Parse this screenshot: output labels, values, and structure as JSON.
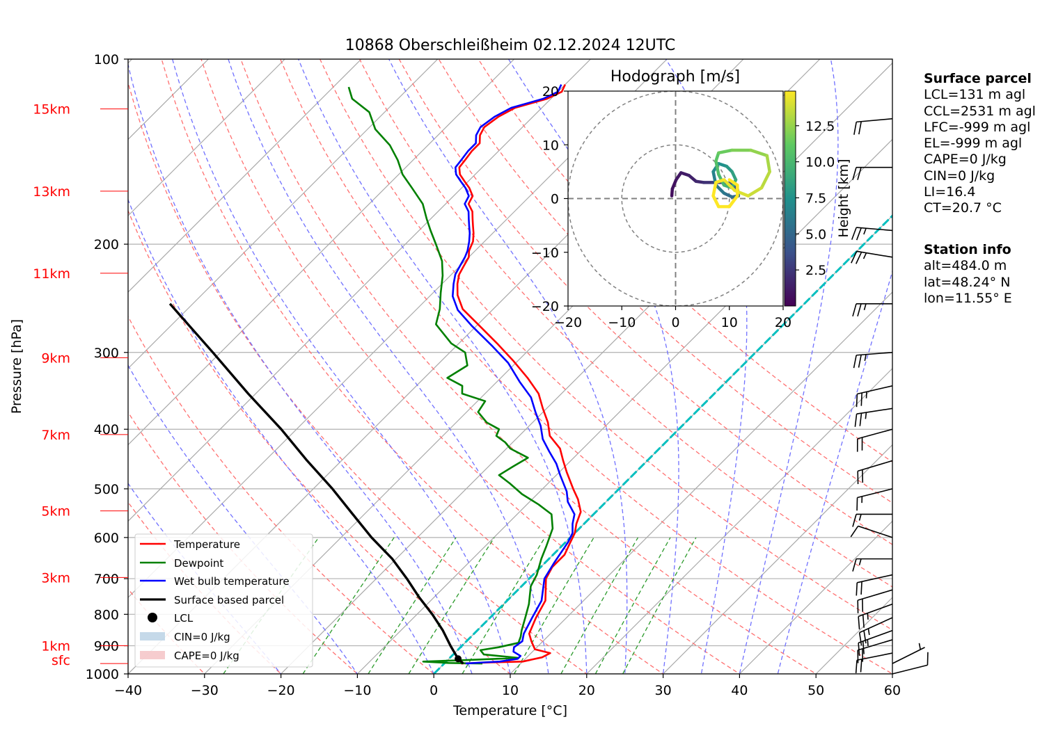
{
  "title": "10868 Oberschleißheim 02.12.2024 12UTC",
  "axes": {
    "xlabel": "Temperature [°C]",
    "ylabel": "Pressure [hPa]",
    "x_ticks": [
      "−40",
      "−30",
      "−20",
      "−10",
      "0",
      "10",
      "20",
      "30",
      "40",
      "50",
      "60"
    ],
    "y_ticks": [
      "100",
      "200",
      "300",
      "400",
      "500",
      "600",
      "700",
      "800",
      "900",
      "1000"
    ],
    "height_labels": [
      "15km",
      "13km",
      "11km",
      "9km",
      "7km",
      "5km",
      "3km",
      "1km",
      "sfc"
    ]
  },
  "legend": {
    "placement": "lower-left",
    "items": [
      "Temperature",
      "Dewpoint",
      "Wet bulb temperature",
      "Surface based parcel",
      "LCL",
      "CIN=0 J/kg",
      "CAPE=0 J/kg"
    ]
  },
  "hodograph": {
    "title": "Hodograph [m/s]",
    "ticks": [
      "−20",
      "−10",
      "0",
      "10",
      "20"
    ],
    "colorbar_label": "Height [km]",
    "colorbar_ticks": [
      "2.5",
      "5.0",
      "7.5",
      "10.0",
      "12.5"
    ]
  },
  "surface_parcel": {
    "header": "Surface parcel",
    "lines": [
      "LCL=131 m agl",
      "CCL=2531 m agl",
      "LFC=-999 m agl",
      "EL=-999 m agl",
      "CAPE=0 J/kg",
      "CIN=0 J/kg",
      "LI=16.4",
      "CT=20.7 °C"
    ]
  },
  "station_info": {
    "header": "Station info",
    "lines": [
      "alt=484.0 m",
      "lat=48.24° N",
      "lon=11.55° E"
    ]
  },
  "colors": {
    "temperature": "#ff0000",
    "dewpoint": "#008000",
    "wetbulb": "#0000ff",
    "parcel": "#000000",
    "freezing_level": "#00bfbf",
    "dry_adiabat": "#ff7070",
    "moist_adiabat": "#7070ff",
    "mixing_ratio": "#2a9a2a"
  },
  "chart_data": {
    "type": "line",
    "skew": "log-p skew-T",
    "xlim": [
      -40,
      60
    ],
    "ylim": [
      1000,
      100
    ],
    "series": [
      {
        "name": "Temperature",
        "points": [
          [
            2.2,
            962
          ],
          [
            6,
            958
          ],
          [
            10,
            955
          ],
          [
            12,
            940
          ],
          [
            12.5,
            925
          ],
          [
            10,
            912
          ],
          [
            8.5,
            885
          ],
          [
            7.2,
            860
          ],
          [
            6,
            810
          ],
          [
            5,
            760
          ],
          [
            2.2,
            700
          ],
          [
            1.5,
            670
          ],
          [
            1.5,
            640
          ],
          [
            0.6,
            610
          ],
          [
            0,
            590
          ],
          [
            -1,
            570
          ],
          [
            -2,
            545
          ],
          [
            -4,
            520
          ],
          [
            -6,
            500
          ],
          [
            -9,
            470
          ],
          [
            -11,
            450
          ],
          [
            -13,
            430
          ],
          [
            -16,
            410
          ],
          [
            -18,
            390
          ],
          [
            -20.5,
            370
          ],
          [
            -23,
            350
          ],
          [
            -26.5,
            330
          ],
          [
            -30.5,
            310
          ],
          [
            -35,
            290
          ],
          [
            -40,
            270
          ],
          [
            -44,
            255
          ],
          [
            -46.5,
            242
          ],
          [
            -48,
            232
          ],
          [
            -49,
            224
          ],
          [
            -49.5,
            217
          ],
          [
            -50,
            210
          ],
          [
            -50.8,
            205
          ],
          [
            -51.5,
            198
          ],
          [
            -52.5,
            192
          ],
          [
            -53.5,
            187
          ],
          [
            -54.5,
            182
          ],
          [
            -55.5,
            177
          ],
          [
            -57,
            172
          ],
          [
            -57.5,
            167
          ],
          [
            -59,
            162
          ],
          [
            -60.5,
            158
          ],
          [
            -62,
            154
          ],
          [
            -63,
            150
          ],
          [
            -63.2,
            146
          ],
          [
            -63.5,
            141
          ],
          [
            -63.5,
            137
          ],
          [
            -64.5,
            133
          ],
          [
            -65,
            129
          ],
          [
            -64.5,
            124
          ],
          [
            -63.5,
            120
          ],
          [
            -60.5,
            116
          ],
          [
            -59.5,
            113
          ],
          [
            -60,
            110
          ]
        ]
      },
      {
        "name": "Dewpoint",
        "points": [
          [
            5,
            962
          ],
          [
            0.5,
            960
          ],
          [
            -3,
            955
          ],
          [
            2,
            950
          ],
          [
            9,
            942
          ],
          [
            4,
            930
          ],
          [
            3,
            915
          ],
          [
            5,
            905
          ],
          [
            7,
            890
          ],
          [
            6.5,
            870
          ],
          [
            5.8,
            850
          ],
          [
            4.6,
            810
          ],
          [
            3.3,
            770
          ],
          [
            1.2,
            720
          ],
          [
            0.5,
            690
          ],
          [
            -1,
            650
          ],
          [
            -2,
            620
          ],
          [
            -3.5,
            580
          ],
          [
            -5.5,
            550
          ],
          [
            -8.5,
            530
          ],
          [
            -12,
            510
          ],
          [
            -15,
            490
          ],
          [
            -17.5,
            475
          ],
          [
            -16.8,
            460
          ],
          [
            -16,
            445
          ],
          [
            -19.5,
            430
          ],
          [
            -21,
            420
          ],
          [
            -23,
            410
          ],
          [
            -23.5,
            400
          ],
          [
            -26,
            390
          ],
          [
            -28.5,
            375
          ],
          [
            -29,
            360
          ],
          [
            -33,
            350
          ],
          [
            -34,
            340
          ],
          [
            -37,
            330
          ],
          [
            -36,
            315
          ],
          [
            -38,
            300
          ],
          [
            -41,
            290
          ],
          [
            -45.5,
            270
          ],
          [
            -47,
            255
          ],
          [
            -49,
            240
          ],
          [
            -51,
            225
          ],
          [
            -53,
            213
          ],
          [
            -56,
            200
          ],
          [
            -58.5,
            190
          ],
          [
            -60.5,
            182
          ],
          [
            -63,
            172
          ],
          [
            -66.5,
            162
          ],
          [
            -69.5,
            154
          ],
          [
            -72,
            146
          ],
          [
            -75,
            138
          ],
          [
            -79,
            130
          ],
          [
            -82,
            122
          ],
          [
            -86,
            116
          ],
          [
            -88,
            111
          ]
        ]
      },
      {
        "name": "Wet bulb temperature",
        "points": [
          [
            2.8,
            962
          ],
          [
            5,
            958
          ],
          [
            7,
            955
          ],
          [
            9,
            945
          ],
          [
            9,
            935
          ],
          [
            7.5,
            920
          ],
          [
            7,
            905
          ],
          [
            7.3,
            885
          ],
          [
            6.5,
            860
          ],
          [
            5.5,
            810
          ],
          [
            4.5,
            760
          ],
          [
            2,
            700
          ],
          [
            1.2,
            660
          ],
          [
            0.3,
            610
          ],
          [
            -0.3,
            590
          ],
          [
            -1.5,
            570
          ],
          [
            -2.5,
            550
          ],
          [
            -5,
            525
          ],
          [
            -6.5,
            505
          ],
          [
            -9.5,
            475
          ],
          [
            -11.5,
            455
          ],
          [
            -14,
            435
          ],
          [
            -16.5,
            415
          ],
          [
            -18.5,
            395
          ],
          [
            -21,
            375
          ],
          [
            -23.5,
            355
          ],
          [
            -27,
            335
          ],
          [
            -31,
            312
          ],
          [
            -35.5,
            292
          ],
          [
            -40.5,
            272
          ],
          [
            -44.5,
            256
          ],
          [
            -47,
            243
          ],
          [
            -48.5,
            232
          ],
          [
            -49.5,
            224
          ],
          [
            -50,
            217
          ],
          [
            -50.5,
            210
          ],
          [
            -51,
            205
          ],
          [
            -52,
            198
          ],
          [
            -53,
            192
          ],
          [
            -54,
            187
          ],
          [
            -55,
            182
          ],
          [
            -56,
            177
          ],
          [
            -57.5,
            172
          ],
          [
            -58,
            167
          ],
          [
            -59.5,
            162
          ],
          [
            -61,
            158
          ],
          [
            -62.5,
            154
          ],
          [
            -63.5,
            150
          ],
          [
            -63.7,
            146
          ],
          [
            -64,
            141
          ],
          [
            -64,
            137
          ],
          [
            -65,
            133
          ],
          [
            -65.5,
            129
          ],
          [
            -65,
            124
          ],
          [
            -64,
            120
          ],
          [
            -61,
            116
          ],
          [
            -60,
            113
          ],
          [
            -60.5,
            110
          ]
        ]
      },
      {
        "name": "Surface based parcel",
        "points": [
          [
            2.5,
            962
          ],
          [
            1.2,
            945
          ],
          [
            -1.5,
            900
          ],
          [
            -4.5,
            850
          ],
          [
            -8,
            800
          ],
          [
            -12,
            750
          ],
          [
            -16,
            700
          ],
          [
            -20.5,
            650
          ],
          [
            -26,
            600
          ],
          [
            -31.5,
            550
          ],
          [
            -37.5,
            500
          ],
          [
            -44.5,
            450
          ],
          [
            -52,
            400
          ],
          [
            -61,
            350
          ],
          [
            -71,
            300
          ],
          [
            -83,
            250
          ]
        ]
      }
    ],
    "lcl": [
      1.2,
      945
    ],
    "freezing_line_temp": 0,
    "dry_adiabats_theta_C": [
      -30,
      -20,
      -10,
      0,
      10,
      20,
      30,
      40,
      50,
      60,
      70,
      80,
      90,
      100,
      110
    ],
    "moist_adiabats_theta_w_C": [
      -20,
      -10,
      0,
      5,
      10,
      15,
      20,
      25,
      30,
      35,
      40,
      45
    ],
    "mixing_ratios_gkg": [
      0.4,
      1,
      2,
      3,
      5,
      8,
      12,
      16,
      20
    ],
    "wind_profile": [
      {
        "p": 1000,
        "u": -4,
        "v": -1
      },
      {
        "p": 962,
        "u": -2,
        "v": -1
      },
      {
        "p": 925,
        "u": 10,
        "v": 2
      },
      {
        "p": 880,
        "u": 10,
        "v": 3
      },
      {
        "p": 850,
        "u": 11,
        "v": 4
      },
      {
        "p": 810,
        "u": 11,
        "v": 5
      },
      {
        "p": 770,
        "u": 11,
        "v": 4
      },
      {
        "p": 730,
        "u": 10,
        "v": 3
      },
      {
        "p": 690,
        "u": 9,
        "v": 2
      },
      {
        "p": 650,
        "u": 8,
        "v": 0
      },
      {
        "p": 600,
        "u": 6,
        "v": -2
      },
      {
        "p": 550,
        "u": 7,
        "v": 0
      },
      {
        "p": 500,
        "u": 8,
        "v": 2
      },
      {
        "p": 450,
        "u": 10,
        "v": 3
      },
      {
        "p": 400,
        "u": 11,
        "v": 3
      },
      {
        "p": 370,
        "u": 13,
        "v": 2
      },
      {
        "p": 340,
        "u": 13,
        "v": 3
      },
      {
        "p": 300,
        "u": 13,
        "v": 1
      },
      {
        "p": 250,
        "u": 12,
        "v": 0
      },
      {
        "p": 210,
        "u": 12,
        "v": -2
      },
      {
        "p": 190,
        "u": 12,
        "v": -1
      },
      {
        "p": 150,
        "u": 11,
        "v": 0
      },
      {
        "p": 125,
        "u": 11,
        "v": 1
      }
    ],
    "hodograph_curve": [
      {
        "z": 0.5,
        "u": -0.7,
        "v": 0.5
      },
      {
        "z": 0.6,
        "u": -0.6,
        "v": 1.8
      },
      {
        "z": 0.8,
        "u": 0.1,
        "v": 3.5
      },
      {
        "z": 1.0,
        "u": 1.0,
        "v": 4.8
      },
      {
        "z": 1.2,
        "u": 2.5,
        "v": 4.3
      },
      {
        "z": 1.5,
        "u": 3.8,
        "v": 3.2
      },
      {
        "z": 1.8,
        "u": 5.2,
        "v": 3.0
      },
      {
        "z": 2.2,
        "u": 6.8,
        "v": 3.0
      },
      {
        "z": 2.7,
        "u": 8.8,
        "v": 3.0
      },
      {
        "z": 3.3,
        "u": 10.5,
        "v": 2.8
      },
      {
        "z": 4.0,
        "u": 11.5,
        "v": 1.8
      },
      {
        "z": 4.6,
        "u": 11.7,
        "v": 0.5
      },
      {
        "z": 5.1,
        "u": 10.5,
        "v": 0.3
      },
      {
        "z": 5.5,
        "u": 9.0,
        "v": 1.0
      },
      {
        "z": 6.0,
        "u": 7.5,
        "v": 2.5
      },
      {
        "z": 6.5,
        "u": 7.0,
        "v": 5.0
      },
      {
        "z": 7.0,
        "u": 8.0,
        "v": 6.5
      },
      {
        "z": 7.5,
        "u": 9.5,
        "v": 6.0
      },
      {
        "z": 8.0,
        "u": 10.5,
        "v": 5.0
      },
      {
        "z": 8.5,
        "u": 11.2,
        "v": 3.5
      },
      {
        "z": 9.0,
        "u": 10.5,
        "v": 2.0
      },
      {
        "z": 9.5,
        "u": 9.0,
        "v": 2.5
      },
      {
        "z": 10.0,
        "u": 8.0,
        "v": 4.5
      },
      {
        "z": 10.5,
        "u": 7.5,
        "v": 7.0
      },
      {
        "z": 11.0,
        "u": 8.0,
        "v": 8.5
      },
      {
        "z": 11.5,
        "u": 10.5,
        "v": 9.0
      },
      {
        "z": 12.0,
        "u": 14.0,
        "v": 9.0
      },
      {
        "z": 12.5,
        "u": 17.0,
        "v": 8.0
      },
      {
        "z": 13.0,
        "u": 17.5,
        "v": 5.0
      },
      {
        "z": 13.4,
        "u": 16.0,
        "v": 2.0
      },
      {
        "z": 13.8,
        "u": 13.5,
        "v": 0.5
      },
      {
        "z": 14.2,
        "u": 11.0,
        "v": 1.5
      },
      {
        "z": 14.5,
        "u": 9.0,
        "v": 3.5
      },
      {
        "z": 14.8,
        "u": 7.5,
        "v": 3.0
      },
      {
        "z": 15.0,
        "u": 7.0,
        "v": 0.5
      },
      {
        "z": 15.3,
        "u": 8.0,
        "v": -1.5
      },
      {
        "z": 15.5,
        "u": 10.0,
        "v": -1.5
      },
      {
        "z": 15.7,
        "u": 11.5,
        "v": 0.5
      },
      {
        "z": 15.9,
        "u": 11.5,
        "v": 2.5
      },
      {
        "z": 16.0,
        "u": 10.0,
        "v": 3.5
      }
    ]
  }
}
